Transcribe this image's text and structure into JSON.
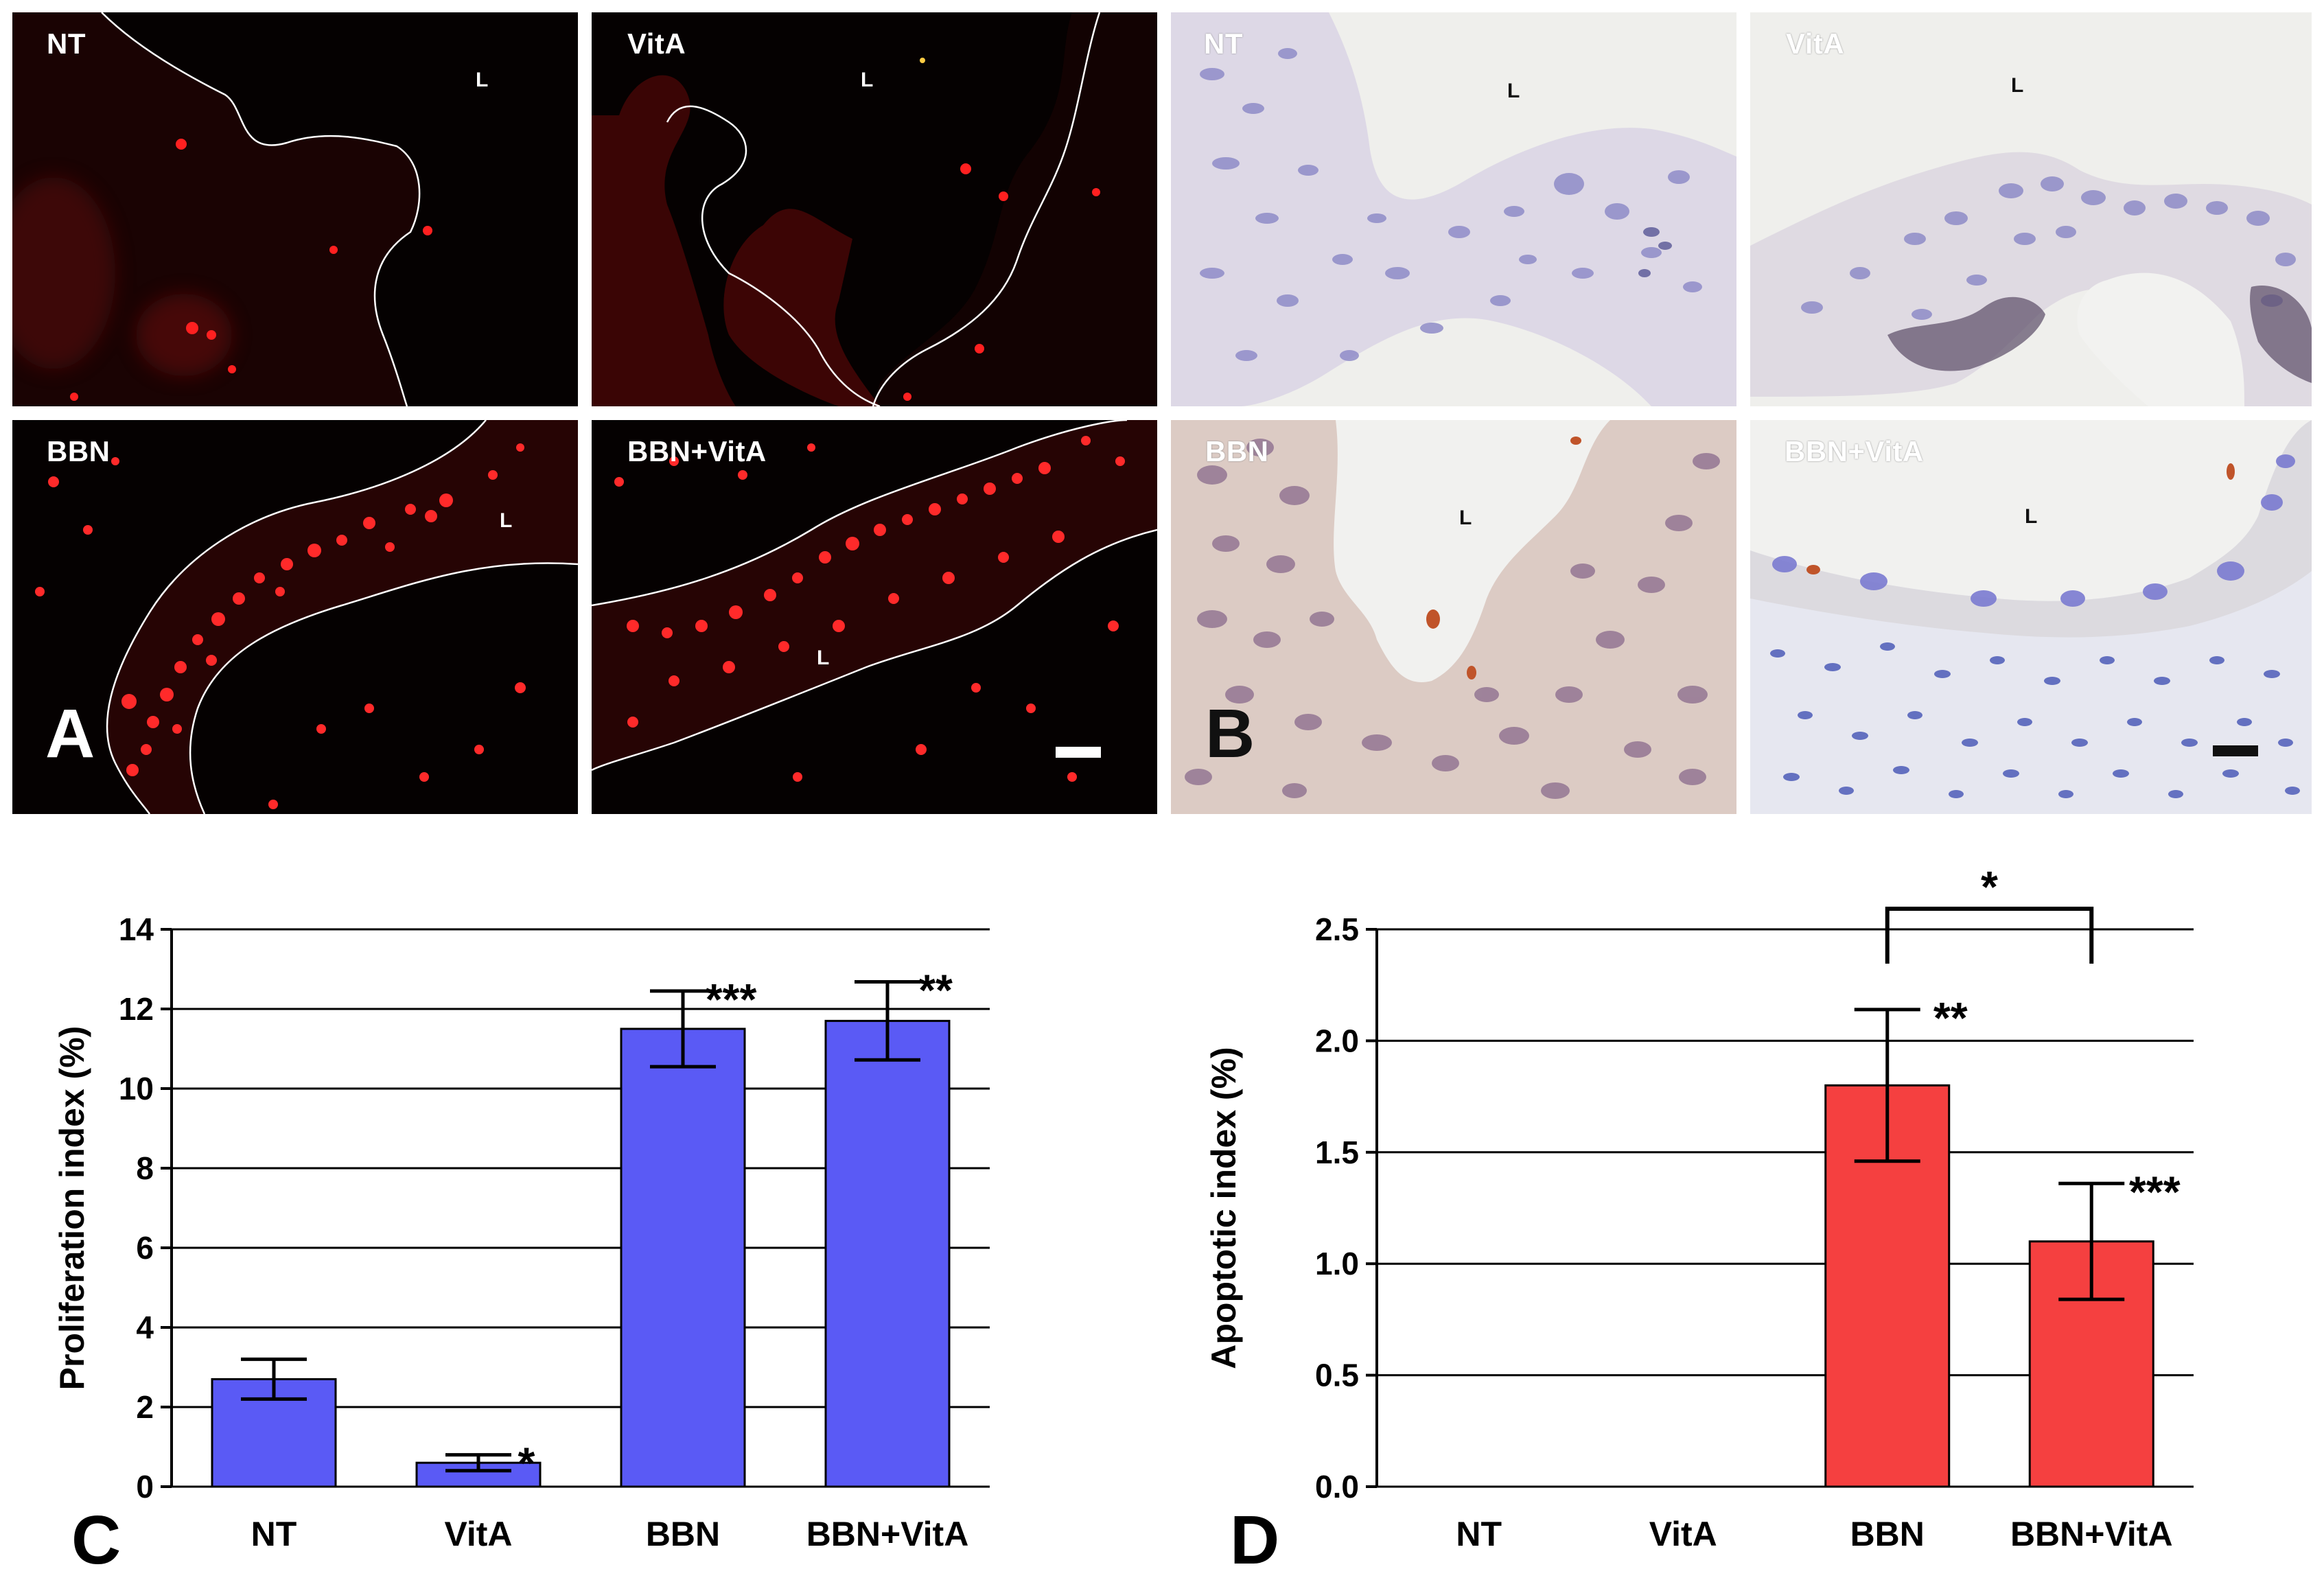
{
  "figure": {
    "panel_a": {
      "letter": "A",
      "images": [
        {
          "label": "NT",
          "lumen": "L"
        },
        {
          "label": "VitA",
          "lumen": "L"
        },
        {
          "label": "BBN",
          "lumen": "L"
        },
        {
          "label": "BBN+VitA",
          "lumen": "L"
        }
      ]
    },
    "panel_b": {
      "letter": "B",
      "images": [
        {
          "label": "NT",
          "lumen": "L"
        },
        {
          "label": "VitA",
          "lumen": "L"
        },
        {
          "label": "BBN",
          "lumen": "L"
        },
        {
          "label": "BBN+VitA",
          "lumen": "L"
        }
      ]
    },
    "colors": {
      "fluorescence_bg": "#050101",
      "fluorescence_signal": "#ff2a2a",
      "ihc_bg": "#eeeeec",
      "bar_c": "#5a5af5",
      "bar_d": "#f54040"
    }
  },
  "chart_data": [
    {
      "type": "bar",
      "panel_letter": "C",
      "categories": [
        "NT",
        "VitA",
        "BBN",
        "BBN+VitA"
      ],
      "values": [
        2.7,
        0.6,
        11.5,
        11.7
      ],
      "errors": [
        0.5,
        0.2,
        0.95,
        0.98
      ],
      "significance": [
        "",
        "*",
        "***",
        "**"
      ],
      "ylabel": "Proliferation index (%)",
      "xlabel": "",
      "ylim": [
        0,
        14
      ],
      "yticks": [
        "0",
        "2",
        "4",
        "6",
        "8",
        "10",
        "12",
        "14"
      ],
      "grid": true,
      "color": "#5a5af5"
    },
    {
      "type": "bar",
      "panel_letter": "D",
      "categories": [
        "NT",
        "VitA",
        "BBN",
        "BBN+VitA"
      ],
      "values": [
        0,
        0,
        1.8,
        1.1
      ],
      "errors": [
        0,
        0,
        0.34,
        0.26
      ],
      "significance": [
        "",
        "",
        "**",
        "***"
      ],
      "bracket": {
        "from": "BBN",
        "to": "BBN+VitA",
        "label": "*"
      },
      "ylabel": "Apoptotic index (%)",
      "xlabel": "",
      "ylim": [
        0,
        2.5
      ],
      "yticks": [
        "0.0",
        "0.5",
        "1.0",
        "1.5",
        "2.0",
        "2.5"
      ],
      "grid": true,
      "color": "#f54040"
    }
  ]
}
